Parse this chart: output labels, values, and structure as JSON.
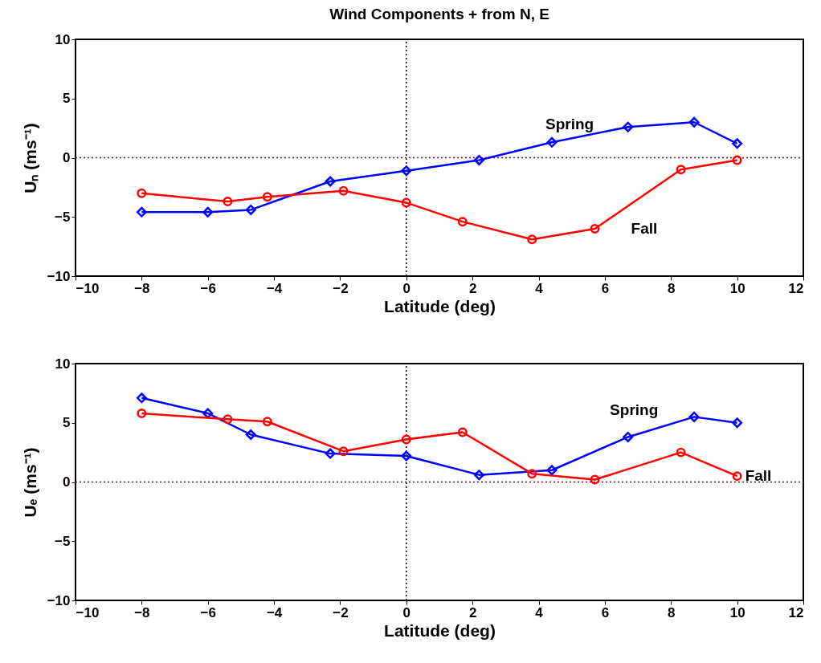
{
  "chart_data": [
    {
      "type": "line",
      "title": "Wind Components + from N, E",
      "xlabel": "Latitude (deg)",
      "ylabel": "Uₙ (ms⁻¹)",
      "xlim": [
        -10,
        12
      ],
      "xticks": [
        -10,
        -8,
        -6,
        -4,
        -2,
        0,
        2,
        4,
        6,
        8,
        10,
        12
      ],
      "ylim": [
        -10,
        10
      ],
      "yticks": [
        -10,
        -5,
        0,
        5,
        10
      ],
      "grid": false,
      "line_style": "solid",
      "series": [
        {
          "name": "Spring",
          "color": "#0000ff",
          "marker": "diamond",
          "x": [
            -8,
            -6,
            -4.7,
            -2.3,
            0,
            2.2,
            4.4,
            6.7,
            8.7,
            10
          ],
          "values": [
            -4.6,
            -4.6,
            -4.4,
            -2.0,
            -1.1,
            -0.2,
            1.3,
            2.6,
            3.0,
            1.2
          ]
        },
        {
          "name": "Fall",
          "color": "#ff0000",
          "marker": "circle",
          "x": [
            -8,
            -5.4,
            -4.2,
            -1.9,
            0,
            1.7,
            3.8,
            5.7,
            8.3,
            10
          ],
          "values": [
            -3.0,
            -3.7,
            -3.3,
            -2.8,
            -3.8,
            -5.4,
            -6.9,
            -6.0,
            -1.0,
            -0.2
          ]
        }
      ],
      "ref_lines": [
        {
          "axis": "x",
          "value": 0,
          "color": "#000000",
          "line_style": "dotted"
        },
        {
          "axis": "y",
          "value": 0,
          "color": "#800040",
          "line_style": "dotted"
        }
      ]
    },
    {
      "type": "line",
      "xlabel": "Latitude (deg)",
      "ylabel": "Uₑ (ms⁻¹)",
      "xlim": [
        -10,
        12
      ],
      "xticks": [
        -10,
        -8,
        -6,
        -4,
        -2,
        0,
        2,
        4,
        6,
        8,
        10,
        12
      ],
      "ylim": [
        -10,
        10
      ],
      "yticks": [
        -10,
        -5,
        0,
        5,
        10
      ],
      "grid": false,
      "line_style": "solid",
      "series": [
        {
          "name": "Spring",
          "color": "#0000ff",
          "marker": "diamond",
          "x": [
            -8,
            -6,
            -4.7,
            -2.3,
            0,
            2.2,
            4.4,
            6.7,
            8.7,
            10
          ],
          "values": [
            7.1,
            5.8,
            4.0,
            2.4,
            2.2,
            0.6,
            1.0,
            3.8,
            5.5,
            5.0
          ]
        },
        {
          "name": "Fall",
          "color": "#ff0000",
          "marker": "circle",
          "x": [
            -8,
            -5.4,
            -4.2,
            -1.9,
            0,
            1.7,
            3.8,
            5.7,
            8.3,
            10
          ],
          "values": [
            5.8,
            5.3,
            5.1,
            2.6,
            3.6,
            4.2,
            0.7,
            0.2,
            2.5,
            0.5
          ]
        }
      ],
      "ref_lines": [
        {
          "axis": "x",
          "value": 0,
          "color": "#000000",
          "line_style": "dotted"
        },
        {
          "axis": "y",
          "value": 0,
          "color": "#800040",
          "line_style": "dotted"
        }
      ]
    }
  ]
}
